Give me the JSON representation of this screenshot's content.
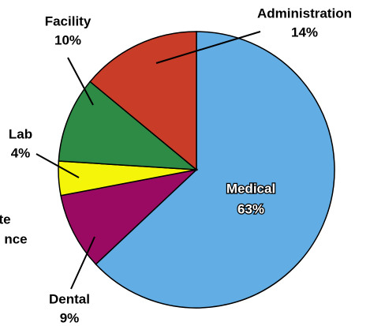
{
  "chart_data": {
    "type": "pie",
    "categories": [
      "Medical",
      "Dental",
      "Lab",
      "Facility",
      "Administration"
    ],
    "values": [
      63,
      9,
      4,
      10,
      14
    ],
    "value_labels": [
      "63%",
      "9%",
      "4%",
      "10%",
      "14%"
    ],
    "colors": [
      "#62ade4",
      "#9b0a62",
      "#f5f50a",
      "#2e8b45",
      "#c83c28"
    ],
    "annotation": [
      "te",
      "nce"
    ]
  }
}
